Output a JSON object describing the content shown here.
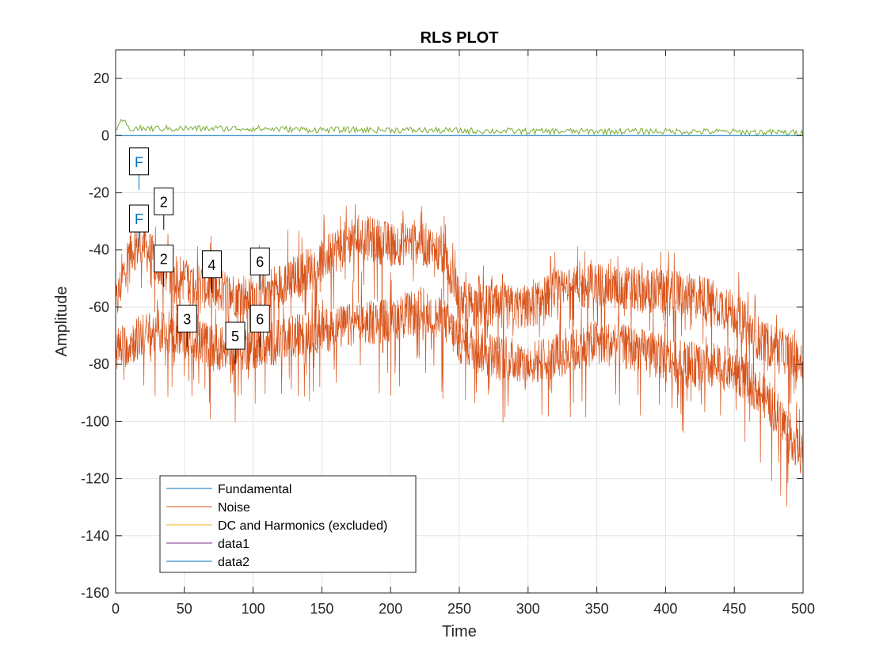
{
  "chart_data": {
    "type": "line",
    "title": "RLS PLOT",
    "xlabel": "Time",
    "ylabel": "Amplitude",
    "xlim": [
      0,
      500
    ],
    "ylim": [
      -160,
      30
    ],
    "xticks": [
      0,
      50,
      100,
      150,
      200,
      250,
      300,
      350,
      400,
      450,
      500
    ],
    "yticks": [
      20,
      0,
      -20,
      -40,
      -60,
      -80,
      -100,
      -120,
      -140,
      -160
    ],
    "grid": true,
    "legend_position": "bottom-left",
    "series": [
      {
        "name": "Fundamental",
        "color": "#0072bd",
        "x": [
          0,
          500
        ],
        "y": [
          0,
          0
        ]
      },
      {
        "name": "Noise",
        "color": "#d95319",
        "x": [
          0,
          10,
          20,
          30,
          40,
          50,
          60,
          80,
          100,
          120,
          140,
          160,
          175,
          200,
          220,
          240,
          250,
          270,
          300,
          320,
          350,
          380,
          400,
          430,
          450,
          470,
          485,
          495,
          500
        ],
        "y": [
          -60,
          -40,
          -38,
          -45,
          -48,
          -50,
          -52,
          -55,
          -56,
          -52,
          -47,
          -40,
          -35,
          -38,
          -37,
          -42,
          -58,
          -60,
          -60,
          -55,
          -52,
          -54,
          -55,
          -57,
          -62,
          -72,
          -75,
          -78,
          -80
        ]
      },
      {
        "name": "",
        "color": "#d95319",
        "x": [
          0,
          20,
          40,
          60,
          80,
          100,
          120,
          150,
          180,
          200,
          220,
          240,
          250,
          280,
          300,
          330,
          350,
          380,
          400,
          420,
          450,
          470,
          485,
          495,
          500
        ],
        "y": [
          -75,
          -70,
          -68,
          -72,
          -75,
          -74,
          -72,
          -68,
          -66,
          -64,
          -62,
          -65,
          -72,
          -78,
          -80,
          -76,
          -72,
          -75,
          -78,
          -80,
          -82,
          -90,
          -100,
          -108,
          -112
        ]
      },
      {
        "name": "DC and Harmonics (excluded)",
        "color": "#edb120",
        "x": [],
        "y": []
      },
      {
        "name": "data1",
        "color": "#7e2f8e",
        "x": [],
        "y": []
      },
      {
        "name": "data2",
        "color": "#0072bd",
        "x": [],
        "y": []
      },
      {
        "name": "",
        "color": "#77ac30",
        "x": [
          0,
          5,
          10,
          20,
          40,
          60,
          100,
          150,
          200,
          250,
          300,
          350,
          400,
          450,
          500
        ],
        "y": [
          0.5,
          5,
          2,
          2,
          2,
          2,
          2,
          1.5,
          1.5,
          1.2,
          1,
          1,
          1,
          0.8,
          0.5
        ]
      }
    ],
    "markers": [
      {
        "label": "F",
        "x": 17,
        "y": -9,
        "color": "#0072bd"
      },
      {
        "label": "F",
        "x": 17,
        "y": -29,
        "color": "#0072bd"
      },
      {
        "label": "2",
        "x": 35,
        "y": -23,
        "color": "#000000"
      },
      {
        "label": "2",
        "x": 35,
        "y": -43,
        "color": "#000000"
      },
      {
        "label": "3",
        "x": 52,
        "y": -64,
        "color": "#000000"
      },
      {
        "label": "4",
        "x": 70,
        "y": -45,
        "color": "#000000"
      },
      {
        "label": "5",
        "x": 87,
        "y": -70,
        "color": "#000000"
      },
      {
        "label": "6",
        "x": 105,
        "y": -44,
        "color": "#000000"
      },
      {
        "label": "6",
        "x": 105,
        "y": -64,
        "color": "#000000"
      }
    ]
  }
}
